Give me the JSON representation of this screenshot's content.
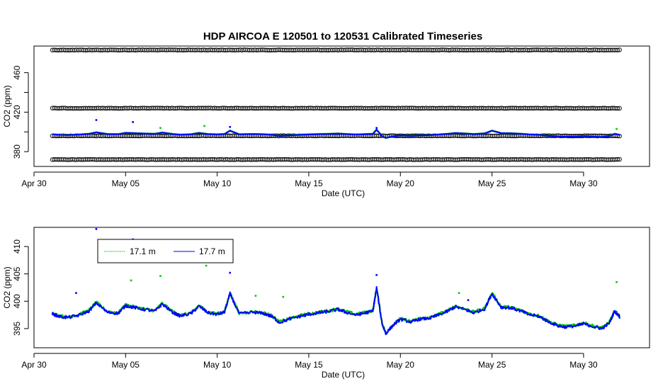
{
  "title": "HDP   AIRCOA  E    120501  to  120531   Calibrated Timeseries",
  "colors": {
    "sensor_17_1": "#00cc00",
    "sensor_17_7": "#0000ff",
    "calibration": "#000000",
    "axes": "#000000",
    "background": "#ffffff"
  },
  "chart_data": [
    {
      "type": "scatter",
      "title": "HDP   AIRCOA  E    120501  to  120531   Calibrated Timeseries",
      "xlabel": "Date (UTC)",
      "ylabel": "CO2 (ppm)",
      "x_ticks": [
        "Apr 30",
        "May 05",
        "May 10",
        "May 15",
        "May 20",
        "May 25",
        "May 30"
      ],
      "x_tick_days": [
        0,
        5,
        10,
        15,
        20,
        25,
        30
      ],
      "xlim": [
        0,
        33.6
      ],
      "y_ticks": [
        380,
        420,
        460
      ],
      "y_ticks_labeled": [
        380,
        420,
        460
      ],
      "y_ticks_unlabeled": [
        400,
        440
      ],
      "ylim": [
        365,
        487
      ],
      "grid": false,
      "series": [
        {
          "kind": "calibration",
          "color": "#000000",
          "y": 483,
          "x_range": [
            1.0,
            32.0
          ]
        },
        {
          "kind": "calibration",
          "color": "#000000",
          "y": 424,
          "x_range": [
            1.0,
            32.0
          ]
        },
        {
          "kind": "calibration",
          "color": "#000000",
          "y": 396,
          "x_range": [
            1.0,
            32.0
          ]
        },
        {
          "kind": "calibration",
          "color": "#000000",
          "y": 372,
          "x_range": [
            1.0,
            32.0
          ]
        },
        {
          "name": "17.7 m",
          "color": "#0000ff",
          "y_approx": 397,
          "x_range": [
            1.0,
            32.0
          ]
        },
        {
          "name": "17.1 m",
          "color": "#00cc00",
          "y_approx": 397,
          "x_range": [
            1.0,
            32.0
          ]
        }
      ],
      "outliers": [
        {
          "x": 3.4,
          "y": 412,
          "color": "#0000ff"
        },
        {
          "x": 5.4,
          "y": 410,
          "color": "#0000ff"
        },
        {
          "x": 6.9,
          "y": 404,
          "color": "#00cc00"
        },
        {
          "x": 9.3,
          "y": 406,
          "color": "#00cc00"
        },
        {
          "x": 10.7,
          "y": 405,
          "color": "#0000ff"
        },
        {
          "x": 18.7,
          "y": 404,
          "color": "#0000ff"
        },
        {
          "x": 31.8,
          "y": 403,
          "color": "#00cc00"
        }
      ]
    },
    {
      "type": "line",
      "xlabel": "Date (UTC)",
      "ylabel": "CO2 (ppm)",
      "x_ticks": [
        "Apr 30",
        "May 05",
        "May 10",
        "May 15",
        "May 20",
        "May 25",
        "May 30"
      ],
      "x_tick_days": [
        0,
        5,
        10,
        15,
        20,
        25,
        30
      ],
      "xlim": [
        0,
        33.6
      ],
      "y_ticks": [
        395,
        400,
        405,
        410
      ],
      "ylim": [
        391.5,
        413.5
      ],
      "grid": false,
      "legend": {
        "placement": "top-left",
        "entries": [
          "17.1 m",
          "17.7 m"
        ]
      },
      "series": [
        {
          "name": "17.1 m",
          "color": "#00cc00",
          "x": [
            1.0,
            1.3,
            1.8,
            2.4,
            3.0,
            3.4,
            4.0,
            4.6,
            5.0,
            5.4,
            6.0,
            6.6,
            7.0,
            7.6,
            8.0,
            8.6,
            9.0,
            9.5,
            10.0,
            10.4,
            10.7,
            11.2,
            12.0,
            12.6,
            13.0,
            13.4,
            14.0,
            14.6,
            15.0,
            15.6,
            16.0,
            16.6,
            17.0,
            17.6,
            18.0,
            18.5,
            18.7,
            19.0,
            19.2,
            19.6,
            20.0,
            20.6,
            21.0,
            21.6,
            22.0,
            22.6,
            23.0,
            23.6,
            24.0,
            24.6,
            25.0,
            25.5,
            26.0,
            26.6,
            27.0,
            27.6,
            28.0,
            28.6,
            29.0,
            29.6,
            30.0,
            30.6,
            31.0,
            31.4,
            31.7,
            32.0
          ],
          "y": [
            397.8,
            397.4,
            397.1,
            397.5,
            398.3,
            399.8,
            398.1,
            397.9,
            399.3,
            399.0,
            398.6,
            398.3,
            399.6,
            398.0,
            397.4,
            397.9,
            399.2,
            398.0,
            397.7,
            398.1,
            401.5,
            397.8,
            398.1,
            397.8,
            397.3,
            396.2,
            396.9,
            397.4,
            397.7,
            398.0,
            398.2,
            398.6,
            398.1,
            397.6,
            397.9,
            398.3,
            402.5,
            396.0,
            394.2,
            395.7,
            396.8,
            396.3,
            396.8,
            397.0,
            397.5,
            398.3,
            399.1,
            398.5,
            398.0,
            398.7,
            401.5,
            399.0,
            398.9,
            398.3,
            397.7,
            397.3,
            396.5,
            395.6,
            395.4,
            395.6,
            396.0,
            395.4,
            395.1,
            396.1,
            398.3,
            397.1
          ]
        },
        {
          "name": "17.7 m",
          "color": "#0000ff",
          "x": [
            1.0,
            1.3,
            1.8,
            2.4,
            3.0,
            3.4,
            4.0,
            4.6,
            5.0,
            5.4,
            6.0,
            6.6,
            7.0,
            7.6,
            8.0,
            8.6,
            9.0,
            9.5,
            10.0,
            10.4,
            10.7,
            11.2,
            12.0,
            12.6,
            13.0,
            13.4,
            14.0,
            14.6,
            15.0,
            15.6,
            16.0,
            16.6,
            17.0,
            17.6,
            18.0,
            18.5,
            18.7,
            19.0,
            19.2,
            19.6,
            20.0,
            20.6,
            21.0,
            21.6,
            22.0,
            22.6,
            23.0,
            23.6,
            24.0,
            24.6,
            25.0,
            25.5,
            26.0,
            26.6,
            27.0,
            27.6,
            28.0,
            28.6,
            29.0,
            29.6,
            30.0,
            30.6,
            31.0,
            31.4,
            31.7,
            32.0
          ],
          "y": [
            397.7,
            397.3,
            397.0,
            397.4,
            398.2,
            399.7,
            398.0,
            397.8,
            399.2,
            398.9,
            398.5,
            398.2,
            399.5,
            397.9,
            397.3,
            397.8,
            399.1,
            397.9,
            397.6,
            398.0,
            401.4,
            397.7,
            398.0,
            397.7,
            397.2,
            396.1,
            396.8,
            397.3,
            397.6,
            397.9,
            398.1,
            398.5,
            398.0,
            397.5,
            397.8,
            398.2,
            402.4,
            395.9,
            394.1,
            395.6,
            396.7,
            396.2,
            396.7,
            396.9,
            397.4,
            398.2,
            399.0,
            398.4,
            397.9,
            398.6,
            401.4,
            398.9,
            398.8,
            398.2,
            397.6,
            397.2,
            396.4,
            395.5,
            395.3,
            395.5,
            395.9,
            395.3,
            395.0,
            396.0,
            398.2,
            397.0
          ]
        }
      ],
      "outliers": [
        {
          "x": 3.4,
          "y": 413.2,
          "color": "#0000ff"
        },
        {
          "x": 5.4,
          "y": 411.3,
          "color": "#0000ff"
        },
        {
          "x": 9.4,
          "y": 406.5,
          "color": "#00cc00"
        },
        {
          "x": 6.9,
          "y": 404.6,
          "color": "#00cc00"
        },
        {
          "x": 5.3,
          "y": 403.8,
          "color": "#00cc00"
        },
        {
          "x": 10.7,
          "y": 405.2,
          "color": "#0000ff"
        },
        {
          "x": 18.7,
          "y": 404.8,
          "color": "#0000ff"
        },
        {
          "x": 23.2,
          "y": 401.5,
          "color": "#00cc00"
        },
        {
          "x": 31.8,
          "y": 403.5,
          "color": "#00cc00"
        },
        {
          "x": 2.3,
          "y": 401.5,
          "color": "#0000ff"
        },
        {
          "x": 12.1,
          "y": 401.0,
          "color": "#00cc00"
        },
        {
          "x": 13.6,
          "y": 400.8,
          "color": "#00cc00"
        },
        {
          "x": 23.7,
          "y": 400.2,
          "color": "#0000ff"
        }
      ]
    }
  ]
}
